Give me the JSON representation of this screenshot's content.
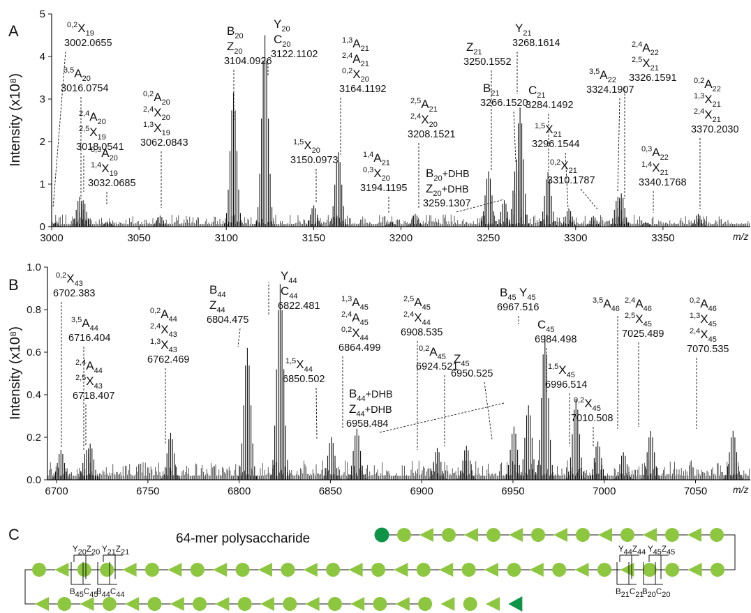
{
  "figure": {
    "colors": {
      "monomer": "#8dc63f",
      "terminal": "#0f9447",
      "spectrum": "#111111"
    }
  },
  "chart_data": [
    {
      "panel": "A",
      "type": "line",
      "ylabel": "Intensity (x10⁸)",
      "xlabel": "m/z",
      "xlim": [
        3000,
        3400
      ],
      "ylim": [
        0,
        5
      ],
      "x_ticks": [
        "3000",
        "3050",
        "3100",
        "3150",
        "3200",
        "3250",
        "3300",
        "3350"
      ],
      "y_ticks": [
        "0",
        "1",
        "2",
        "3",
        "4",
        "5"
      ],
      "peaks": [
        {
          "x": 3002.07,
          "y": 0.08
        },
        {
          "x": 3016.08,
          "y": 0.7
        },
        {
          "x": 3018.05,
          "y": 0.62
        },
        {
          "x": 3032.07,
          "y": 0.12
        },
        {
          "x": 3062.08,
          "y": 0.26
        },
        {
          "x": 3104.09,
          "y": 3.15
        },
        {
          "x": 3122.11,
          "y": 4.5
        },
        {
          "x": 3150.1,
          "y": 0.5
        },
        {
          "x": 3164.12,
          "y": 1.75
        },
        {
          "x": 3194.12,
          "y": 0.12
        },
        {
          "x": 3208.15,
          "y": 0.3
        },
        {
          "x": 3250.16,
          "y": 1.3
        },
        {
          "x": 3259.13,
          "y": 0.62
        },
        {
          "x": 3266.15,
          "y": 1.5
        },
        {
          "x": 3268.16,
          "y": 2.8
        },
        {
          "x": 3284.15,
          "y": 1.28
        },
        {
          "x": 3296.15,
          "y": 0.42
        },
        {
          "x": 3310.18,
          "y": 0.25
        },
        {
          "x": 3324.19,
          "y": 0.7
        },
        {
          "x": 3326.16,
          "y": 0.78
        },
        {
          "x": 3340.18,
          "y": 0.1
        },
        {
          "x": 3370.2,
          "y": 0.3
        }
      ],
      "annotations": [
        {
          "lines": [
            [
              "0,2",
              "X",
              "19"
            ]
          ],
          "mass": "3002.0655"
        },
        {
          "lines": [
            [
              "3,5",
              "A",
              "20"
            ]
          ],
          "mass": "3016.0754"
        },
        {
          "lines": [
            [
              "2,4",
              "A",
              "20"
            ],
            [
              "2,5",
              "X",
              "19"
            ]
          ],
          "mass": "3018.0541"
        },
        {
          "lines": [
            [
              "0,3",
              "A",
              "20"
            ],
            [
              "1,4",
              "X",
              "19"
            ]
          ],
          "mass": "3032.0685"
        },
        {
          "lines": [
            [
              "0,2",
              "A",
              "20"
            ],
            [
              "2,4",
              "X",
              "20"
            ],
            [
              "1,3",
              "X",
              "19"
            ]
          ],
          "mass": "3062.0843"
        },
        {
          "lines": [
            [
              "",
              "B",
              "20"
            ],
            [
              "",
              "Z",
              "20"
            ]
          ],
          "mass": "3104.0926"
        },
        {
          "lines": [
            [
              "",
              "Y",
              "20"
            ],
            [
              "",
              "C",
              "20"
            ]
          ],
          "mass": "3122.1102"
        },
        {
          "lines": [
            [
              "1,5",
              "X",
              "20"
            ]
          ],
          "mass": "3150.0973"
        },
        {
          "lines": [
            [
              "1,3",
              "A",
              "21"
            ],
            [
              "2,4",
              "A",
              "21"
            ],
            [
              "0,2",
              "X",
              "20"
            ]
          ],
          "mass": "3164.1192"
        },
        {
          "lines": [
            [
              "1,4",
              "A",
              "21"
            ],
            [
              "0,3",
              "X",
              "20"
            ]
          ],
          "mass": "3194.1195"
        },
        {
          "lines": [
            [
              "2,5",
              "A",
              "21"
            ],
            [
              "2,4",
              "X",
              "20"
            ]
          ],
          "mass": "3208.1521"
        },
        {
          "lines": [
            [
              "",
              "Z",
              "21"
            ]
          ],
          "mass": "3250.1552"
        },
        {
          "lines": [
            [
              "",
              "B",
              "20",
              "+DHB"
            ],
            [
              "",
              "Z",
              "20",
              "+DHB"
            ]
          ],
          "mass": "3259.1307"
        },
        {
          "lines": [
            [
              "",
              "B",
              "21"
            ]
          ],
          "mass": "3266.1520"
        },
        {
          "lines": [
            [
              "",
              "Y",
              "21"
            ]
          ],
          "mass": "3268.1614"
        },
        {
          "lines": [
            [
              "",
              "C",
              "21"
            ]
          ],
          "mass": "3284.1492"
        },
        {
          "lines": [
            [
              "1,5",
              "X",
              "21"
            ]
          ],
          "mass": "3296.1544"
        },
        {
          "lines": [
            [
              "0,2",
              "X",
              "21"
            ]
          ],
          "mass": "3310.1787"
        },
        {
          "lines": [
            [
              "3,5",
              "A",
              "22"
            ]
          ],
          "mass": "3324.1907"
        },
        {
          "lines": [
            [
              "2,4",
              "A",
              "22"
            ],
            [
              "2,5",
              "X",
              "21"
            ]
          ],
          "mass": "3326.1591"
        },
        {
          "lines": [
            [
              "0,3",
              "A",
              "22"
            ],
            [
              "1,4",
              "X",
              "21"
            ]
          ],
          "mass": "3340.1768"
        },
        {
          "lines": [
            [
              "0,2",
              "A",
              "22"
            ],
            [
              "1,3",
              "X",
              "21"
            ],
            [
              "2,4",
              "X",
              "21"
            ]
          ],
          "mass": "3370.2030"
        }
      ]
    },
    {
      "panel": "B",
      "type": "line",
      "ylabel": "Intensity (x10⁸)",
      "xlabel": "m/z",
      "xlim": [
        6695,
        7080
      ],
      "ylim": [
        0,
        1.0
      ],
      "x_ticks": [
        "6700",
        "6750",
        "6800",
        "6850",
        "6900",
        "6950",
        "7000",
        "7050"
      ],
      "y_ticks": [
        "0.0",
        "0.2",
        "0.4",
        "0.6",
        "0.8",
        "1.0"
      ],
      "peaks": [
        {
          "x": 6702.38,
          "y": 0.14
        },
        {
          "x": 6716.4,
          "y": 0.14
        },
        {
          "x": 6718.41,
          "y": 0.17
        },
        {
          "x": 6762.47,
          "y": 0.22
        },
        {
          "x": 6804.48,
          "y": 0.62
        },
        {
          "x": 6822.48,
          "y": 0.92
        },
        {
          "x": 6850.5,
          "y": 0.2
        },
        {
          "x": 6864.5,
          "y": 0.24
        },
        {
          "x": 6908.54,
          "y": 0.15
        },
        {
          "x": 6924.52,
          "y": 0.16
        },
        {
          "x": 6950.53,
          "y": 0.25
        },
        {
          "x": 6958.48,
          "y": 0.35
        },
        {
          "x": 6967.52,
          "y": 0.68
        },
        {
          "x": 6984.5,
          "y": 0.38
        },
        {
          "x": 6996.51,
          "y": 0.18
        },
        {
          "x": 7010.51,
          "y": 0.13
        },
        {
          "x": 7025.49,
          "y": 0.23
        },
        {
          "x": 7070.54,
          "y": 0.23
        }
      ],
      "annotations": [
        {
          "lines": [
            [
              "0,2",
              "X",
              "43"
            ]
          ],
          "mass": "6702.383"
        },
        {
          "lines": [
            [
              "3,5",
              "A",
              "44"
            ]
          ],
          "mass": "6716.404"
        },
        {
          "lines": [
            [
              "2,4",
              "A",
              "44"
            ],
            [
              "2,5",
              "X",
              "43"
            ]
          ],
          "mass": "6718.407"
        },
        {
          "lines": [
            [
              "0,2",
              "A",
              "44"
            ],
            [
              "2,4",
              "X",
              "43"
            ],
            [
              "1,3",
              "X",
              "43"
            ]
          ],
          "mass": "6762.469"
        },
        {
          "lines": [
            [
              "",
              "B",
              "44"
            ],
            [
              "",
              "Z",
              "44"
            ]
          ],
          "mass": "6804.475"
        },
        {
          "lines": [
            [
              "",
              "Y",
              "44"
            ],
            [
              "",
              "C",
              "44"
            ]
          ],
          "mass": "6822.481"
        },
        {
          "lines": [
            [
              "1,5",
              "X",
              "44"
            ]
          ],
          "mass": "6850.502"
        },
        {
          "lines": [
            [
              "1,3",
              "A",
              "45"
            ],
            [
              "2,4",
              "A",
              "45"
            ],
            [
              "0,2",
              "X",
              "44"
            ]
          ],
          "mass": "6864.499"
        },
        {
          "lines": [
            [
              "2,5",
              "A",
              "45"
            ],
            [
              "2,4",
              "X",
              "44"
            ]
          ],
          "mass": "6908.535"
        },
        {
          "lines": [
            [
              "0,2",
              "A",
              "45"
            ]
          ],
          "mass": "6924.521"
        },
        {
          "lines": [
            [
              "",
              "Z",
              "45"
            ]
          ],
          "mass": "6950.525"
        },
        {
          "lines": [
            [
              "",
              "B",
              "44",
              "+DHB"
            ],
            [
              "",
              "Z",
              "44",
              "+DHB"
            ]
          ],
          "mass": "6958.484"
        },
        {
          "lines": [
            [
              "",
              "B",
              "45",
              " Y",
              "45"
            ]
          ],
          "mass": "6967.516"
        },
        {
          "lines": [
            [
              "",
              "C",
              "45"
            ]
          ],
          "mass": "6984.498"
        },
        {
          "lines": [
            [
              "1,5",
              "X",
              "45"
            ]
          ],
          "mass": "6996.514"
        },
        {
          "lines": [
            [
              "0,2",
              "X",
              "45"
            ]
          ],
          "mass": "7010.508"
        },
        {
          "lines": [
            [
              "3,5",
              "A",
              "46"
            ]
          ],
          "mass": ""
        },
        {
          "lines": [
            [
              "2,4",
              "A",
              "46"
            ],
            [
              "2,5",
              "X",
              "45"
            ]
          ],
          "mass": "7025.489"
        },
        {
          "lines": [
            [
              "0,2",
              "A",
              "46"
            ],
            [
              "1,3",
              "X",
              "45"
            ],
            [
              "2,4",
              "X",
              "45"
            ]
          ],
          "mass": "7070.535"
        }
      ]
    }
  ],
  "panels": {
    "a_label": "A",
    "b_label": "B",
    "c_label": "C"
  },
  "polymer": {
    "title": "64-mer polysaccharide",
    "row1_pattern": "CTCTCTCTCTCTCTC",
    "row2_pattern": "CTCCTCTCTCTCTCTCTCTCTCTCTCTCCTC",
    "row3_pattern": "TCTCTCTCTCTCTCTCTCTCTR",
    "cleavage_left_top": [
      "Y20",
      "Z20",
      "Y21",
      "Z21"
    ],
    "cleavage_left_bottom": [
      "B45",
      "C45",
      "B44",
      "C44"
    ],
    "cleavage_right_top": [
      "Y44",
      "Z44",
      "Y45",
      "Z45"
    ],
    "cleavage_right_bottom": [
      "B21",
      "C21",
      "B20",
      "C20"
    ]
  }
}
